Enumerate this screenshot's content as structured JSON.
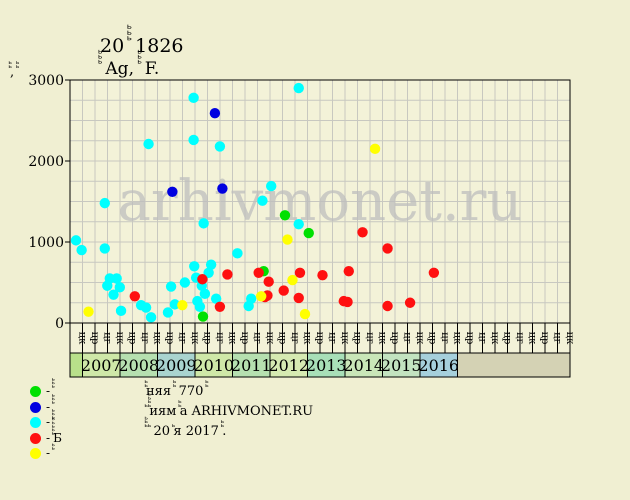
{
  "chart_data": {
    "type": "scatter",
    "title": "20 ꙺꙺꙺ 1826",
    "subtitle": "ꙺꙺꙺ Ag, ꙺꙺꙺ F.",
    "ylabel": "ꙺꙺ, ꙺꙺ",
    "ylim": [
      0,
      3000
    ],
    "yticks": [
      0,
      1000,
      2000,
      3000
    ],
    "watermark": "arhivmonet.ru",
    "grid": true,
    "x_units": [
      "цк",
      "цр",
      "цг",
      "цк",
      "цр",
      "цг",
      "цк",
      "цр",
      "цг",
      "цк",
      "цр",
      "цг",
      "цк",
      "цр",
      "цг",
      "цк",
      "цр",
      "цг",
      "цк",
      "цр",
      "цг",
      "цк",
      "цр",
      "цг",
      "цк",
      "цр",
      "цг",
      "цк",
      "цр",
      "цг",
      "цк",
      "цр",
      "цг",
      "цк",
      "цр",
      "цг",
      "цк",
      "цр",
      "цг",
      "цк"
    ],
    "years": [
      {
        "label": "2007",
        "start": 1,
        "span": 3,
        "color": "#cfe8a8"
      },
      {
        "label": "2008",
        "start": 4,
        "span": 3,
        "color": "#b6e0b0"
      },
      {
        "label": "2009",
        "start": 7,
        "span": 3,
        "color": "#a9d4cf"
      },
      {
        "label": "2010",
        "start": 10,
        "span": 3,
        "color": "#cfe8a8"
      },
      {
        "label": "2011",
        "start": 13,
        "span": 3,
        "color": "#b6e0b0"
      },
      {
        "label": "2012",
        "start": 16,
        "span": 3,
        "color": "#d6eab2"
      },
      {
        "label": "2013",
        "start": 19,
        "span": 3,
        "color": "#a8dfb8"
      },
      {
        "label": "2014",
        "start": 22,
        "span": 3,
        "color": "#c9e6b8"
      },
      {
        "label": "2015",
        "start": 25,
        "span": 3,
        "color": "#c3e3c0"
      },
      {
        "label": "2016",
        "start": 28,
        "span": 3,
        "color": "#a6d0dc"
      }
    ],
    "series": [
      {
        "name": "ꙺꙺꙺ",
        "color": "#00e000",
        "points": [
          [
            10.15,
            80
          ],
          [
            15.0,
            640
          ],
          [
            16.7,
            1330
          ],
          [
            18.6,
            1110
          ]
        ]
      },
      {
        "name": "ꙺꙺꙺ",
        "color": "#0000e0",
        "points": [
          [
            7.7,
            1620
          ],
          [
            11.1,
            2590
          ],
          [
            11.7,
            1660
          ]
        ]
      },
      {
        "name": "ꙺꙺꙺ",
        "color": "#00ffff",
        "points": [
          [
            0.0,
            1020
          ],
          [
            0.45,
            900
          ],
          [
            2.3,
            1480
          ],
          [
            2.3,
            920
          ],
          [
            2.5,
            460
          ],
          [
            2.7,
            550
          ],
          [
            3.0,
            350
          ],
          [
            3.25,
            550
          ],
          [
            3.5,
            440
          ],
          [
            3.6,
            150
          ],
          [
            5.2,
            220
          ],
          [
            5.6,
            190
          ],
          [
            5.8,
            2210
          ],
          [
            6.0,
            70
          ],
          [
            7.35,
            130
          ],
          [
            7.6,
            450
          ],
          [
            7.9,
            230
          ],
          [
            8.7,
            500
          ],
          [
            9.4,
            2780
          ],
          [
            9.4,
            2260
          ],
          [
            9.45,
            700
          ],
          [
            9.6,
            560
          ],
          [
            9.7,
            270
          ],
          [
            9.9,
            200
          ],
          [
            10.05,
            460
          ],
          [
            10.2,
            1230
          ],
          [
            10.3,
            360
          ],
          [
            10.6,
            620
          ],
          [
            10.8,
            720
          ],
          [
            11.2,
            300
          ],
          [
            11.5,
            2180
          ],
          [
            12.9,
            860
          ],
          [
            13.8,
            210
          ],
          [
            14.0,
            300
          ],
          [
            14.9,
            1510
          ],
          [
            15.6,
            1690
          ],
          [
            17.8,
            2900
          ],
          [
            17.8,
            1220
          ]
        ]
      },
      {
        "name": "ꙺꙺꙺꙺꙺБ",
        "color": "#ff1010",
        "points": [
          [
            4.7,
            330
          ],
          [
            10.1,
            540
          ],
          [
            11.5,
            200
          ],
          [
            12.1,
            600
          ],
          [
            14.6,
            620
          ],
          [
            15.1,
            320
          ],
          [
            15.3,
            340
          ],
          [
            15.4,
            510
          ],
          [
            16.6,
            400
          ],
          [
            17.8,
            310
          ],
          [
            17.9,
            620
          ],
          [
            19.7,
            590
          ],
          [
            21.4,
            270
          ],
          [
            21.7,
            260
          ],
          [
            21.8,
            640
          ],
          [
            22.9,
            1120
          ],
          [
            24.9,
            920
          ],
          [
            24.9,
            210
          ],
          [
            26.7,
            250
          ],
          [
            28.6,
            620
          ]
        ]
      },
      {
        "name": "ꙺꙺ",
        "color": "#ffff00",
        "points": [
          [
            1.0,
            140
          ],
          [
            8.5,
            220
          ],
          [
            14.8,
            330
          ],
          [
            16.9,
            1030
          ],
          [
            17.3,
            530
          ],
          [
            18.3,
            110
          ],
          [
            23.9,
            2150
          ]
        ]
      }
    ]
  },
  "legend": [
    {
      "label": "- ꙺꙺꙺ",
      "color": "#00e000"
    },
    {
      "label": "- ꙺꙺꙺ",
      "color": "#0000e0"
    },
    {
      "label": "- ꙺꙺꙺ",
      "color": "#00ffff"
    },
    {
      "label": "- ꙺꙺꙺꙺꙺБ",
      "color": "#ff1010"
    },
    {
      "label": "- ꙺꙺ",
      "color": "#ffff00"
    }
  ],
  "notes": [
    "ꙺꙺняя ꙺꙺ 770 ꙺꙺ",
    "ꙺ ꙺꙺꙺꙺиям ꙺꙺа ARHIVMONET.RU",
    "ꙺꙺꙺ ꙺ 20 ꙺя 2017 ꙺꙺ."
  ]
}
